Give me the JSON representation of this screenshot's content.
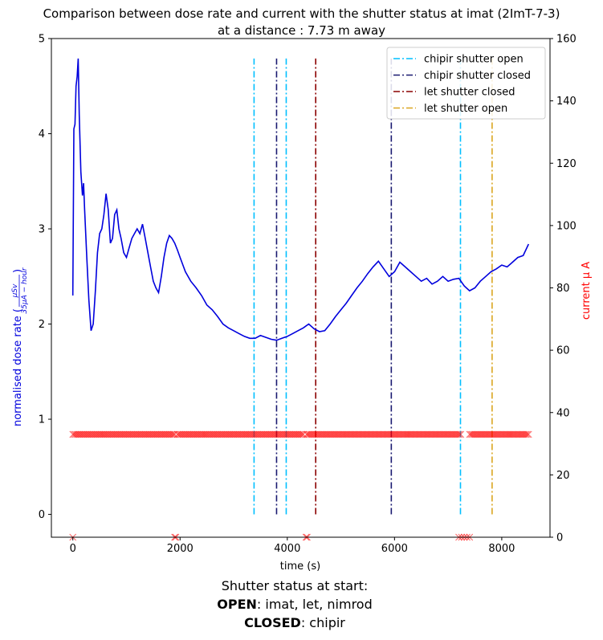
{
  "chart_data": {
    "type": "line",
    "title_line1": "Comparison between dose rate and current with the shutter status at imat (2ImT-7-3)",
    "title_line2": "at a distance : 7.73 m away",
    "xlabel": "time (s)",
    "ylabel_left_prefix": "normalised dose rate (",
    "ylabel_left_frac_num": "μSv",
    "ylabel_left_frac_den": "35μA − hour",
    "ylabel_left_suffix": ")",
    "ylabel_right": "current μ A",
    "xlim": [
      -400,
      8900
    ],
    "ylim_left": [
      -0.24,
      5.0
    ],
    "ylim_right": [
      0,
      160
    ],
    "xticks": [
      "0",
      "2000",
      "4000",
      "6000",
      "8000"
    ],
    "xtick_values": [
      0,
      2000,
      4000,
      6000,
      8000
    ],
    "yticks_left": [
      "0",
      "1",
      "2",
      "3",
      "4",
      "5"
    ],
    "ytick_left_values": [
      0,
      1,
      2,
      3,
      4,
      5
    ],
    "yticks_right": [
      "0",
      "20",
      "40",
      "60",
      "80",
      "100",
      "120",
      "140",
      "160"
    ],
    "ytick_right_values": [
      0,
      20,
      40,
      60,
      80,
      100,
      120,
      140,
      160
    ],
    "colors": {
      "dose": "#0000dd",
      "current": "#ff0000",
      "chipir_open": "#00bfff",
      "chipir_closed": "#191970",
      "let_closed": "#8b0000",
      "let_open": "#daa520",
      "right_label": "#ff0000",
      "left_label": "#0000dd"
    },
    "dose_series": {
      "x": [
        0,
        20,
        40,
        60,
        80,
        100,
        120,
        150,
        180,
        200,
        220,
        260,
        300,
        340,
        380,
        420,
        460,
        500,
        540,
        580,
        620,
        660,
        700,
        740,
        780,
        820,
        860,
        900,
        950,
        1000,
        1050,
        1100,
        1150,
        1200,
        1250,
        1300,
        1350,
        1400,
        1450,
        1500,
        1550,
        1600,
        1650,
        1700,
        1750,
        1800,
        1850,
        1900,
        1950,
        2000,
        2100,
        2200,
        2300,
        2400,
        2500,
        2600,
        2700,
        2800,
        2900,
        3000,
        3100,
        3200,
        3300,
        3400,
        3500,
        3600,
        3700,
        3800,
        3900,
        4000,
        4100,
        4200,
        4300,
        4400,
        4500,
        4600,
        4700,
        4800,
        4900,
        5000,
        5100,
        5200,
        5300,
        5400,
        5500,
        5600,
        5700,
        5800,
        5900,
        6000,
        6100,
        6200,
        6300,
        6400,
        6500,
        6600,
        6700,
        6800,
        6900,
        7000,
        7100,
        7200,
        7300,
        7400,
        7500,
        7600,
        7700,
        7800,
        7900,
        8000,
        8100,
        8200,
        8300,
        8400,
        8500
      ],
      "y": [
        2.3,
        4.05,
        4.1,
        4.5,
        4.6,
        4.79,
        4.2,
        3.6,
        3.35,
        3.48,
        3.2,
        2.7,
        2.25,
        1.93,
        2.0,
        2.35,
        2.75,
        2.95,
        3.0,
        3.15,
        3.37,
        3.2,
        2.85,
        2.9,
        3.15,
        3.2,
        3.0,
        2.9,
        2.75,
        2.7,
        2.8,
        2.9,
        2.95,
        3.0,
        2.95,
        3.05,
        2.9,
        2.75,
        2.6,
        2.45,
        2.38,
        2.33,
        2.5,
        2.7,
        2.85,
        2.93,
        2.9,
        2.85,
        2.78,
        2.7,
        2.55,
        2.45,
        2.38,
        2.3,
        2.2,
        2.15,
        2.08,
        2.0,
        1.96,
        1.93,
        1.9,
        1.87,
        1.85,
        1.85,
        1.88,
        1.86,
        1.84,
        1.83,
        1.85,
        1.87,
        1.9,
        1.93,
        1.96,
        2.0,
        1.95,
        1.92,
        1.93,
        2.0,
        2.08,
        2.15,
        2.22,
        2.3,
        2.38,
        2.45,
        2.53,
        2.6,
        2.66,
        2.58,
        2.5,
        2.55,
        2.65,
        2.6,
        2.55,
        2.5,
        2.45,
        2.48,
        2.42,
        2.45,
        2.5,
        2.45,
        2.47,
        2.48,
        2.4,
        2.35,
        2.38,
        2.45,
        2.5,
        2.55,
        2.58,
        2.62,
        2.6,
        2.65,
        2.7,
        2.72,
        2.84
      ]
    },
    "current_series": {
      "segments": [
        {
          "x_start": 0,
          "x_end": 1900,
          "y": 33
        },
        {
          "x_start": 1950,
          "x_end": 4300,
          "y": 33
        },
        {
          "x_start": 4360,
          "x_end": 7250,
          "y": 33
        },
        {
          "x_start": 7400,
          "x_end": 8500,
          "y": 33
        }
      ],
      "zero_points": [
        0,
        1900,
        1920,
        4350,
        4370,
        7200,
        7250,
        7300,
        7350,
        7400
      ]
    },
    "vlines": [
      {
        "series": "chipir shutter open",
        "x": 3380
      },
      {
        "series": "chipir shutter open",
        "x": 3980
      },
      {
        "series": "chipir shutter open",
        "x": 7230
      },
      {
        "series": "chipir shutter closed",
        "x": 3800
      },
      {
        "series": "chipir shutter closed",
        "x": 5940
      },
      {
        "series": "let shutter closed",
        "x": 4530
      },
      {
        "series": "let shutter open",
        "x": 7820
      }
    ],
    "vline_ymin": 0,
    "vline_ymax": 4.79,
    "legend": {
      "placement": "top-right",
      "entries": [
        {
          "label": "chipir shutter open",
          "color_key": "chipir_open"
        },
        {
          "label": "chipir shutter closed",
          "color_key": "chipir_closed"
        },
        {
          "label": "let shutter closed",
          "color_key": "let_closed"
        },
        {
          "label": "let shutter open",
          "color_key": "let_open"
        }
      ]
    },
    "grid": false
  },
  "caption": {
    "line1": "Shutter status at start:",
    "open_label": "OPEN",
    "open_values": ":  imat, let, nimrod",
    "closed_label": "CLOSED",
    "closed_values": ":  chipir"
  }
}
